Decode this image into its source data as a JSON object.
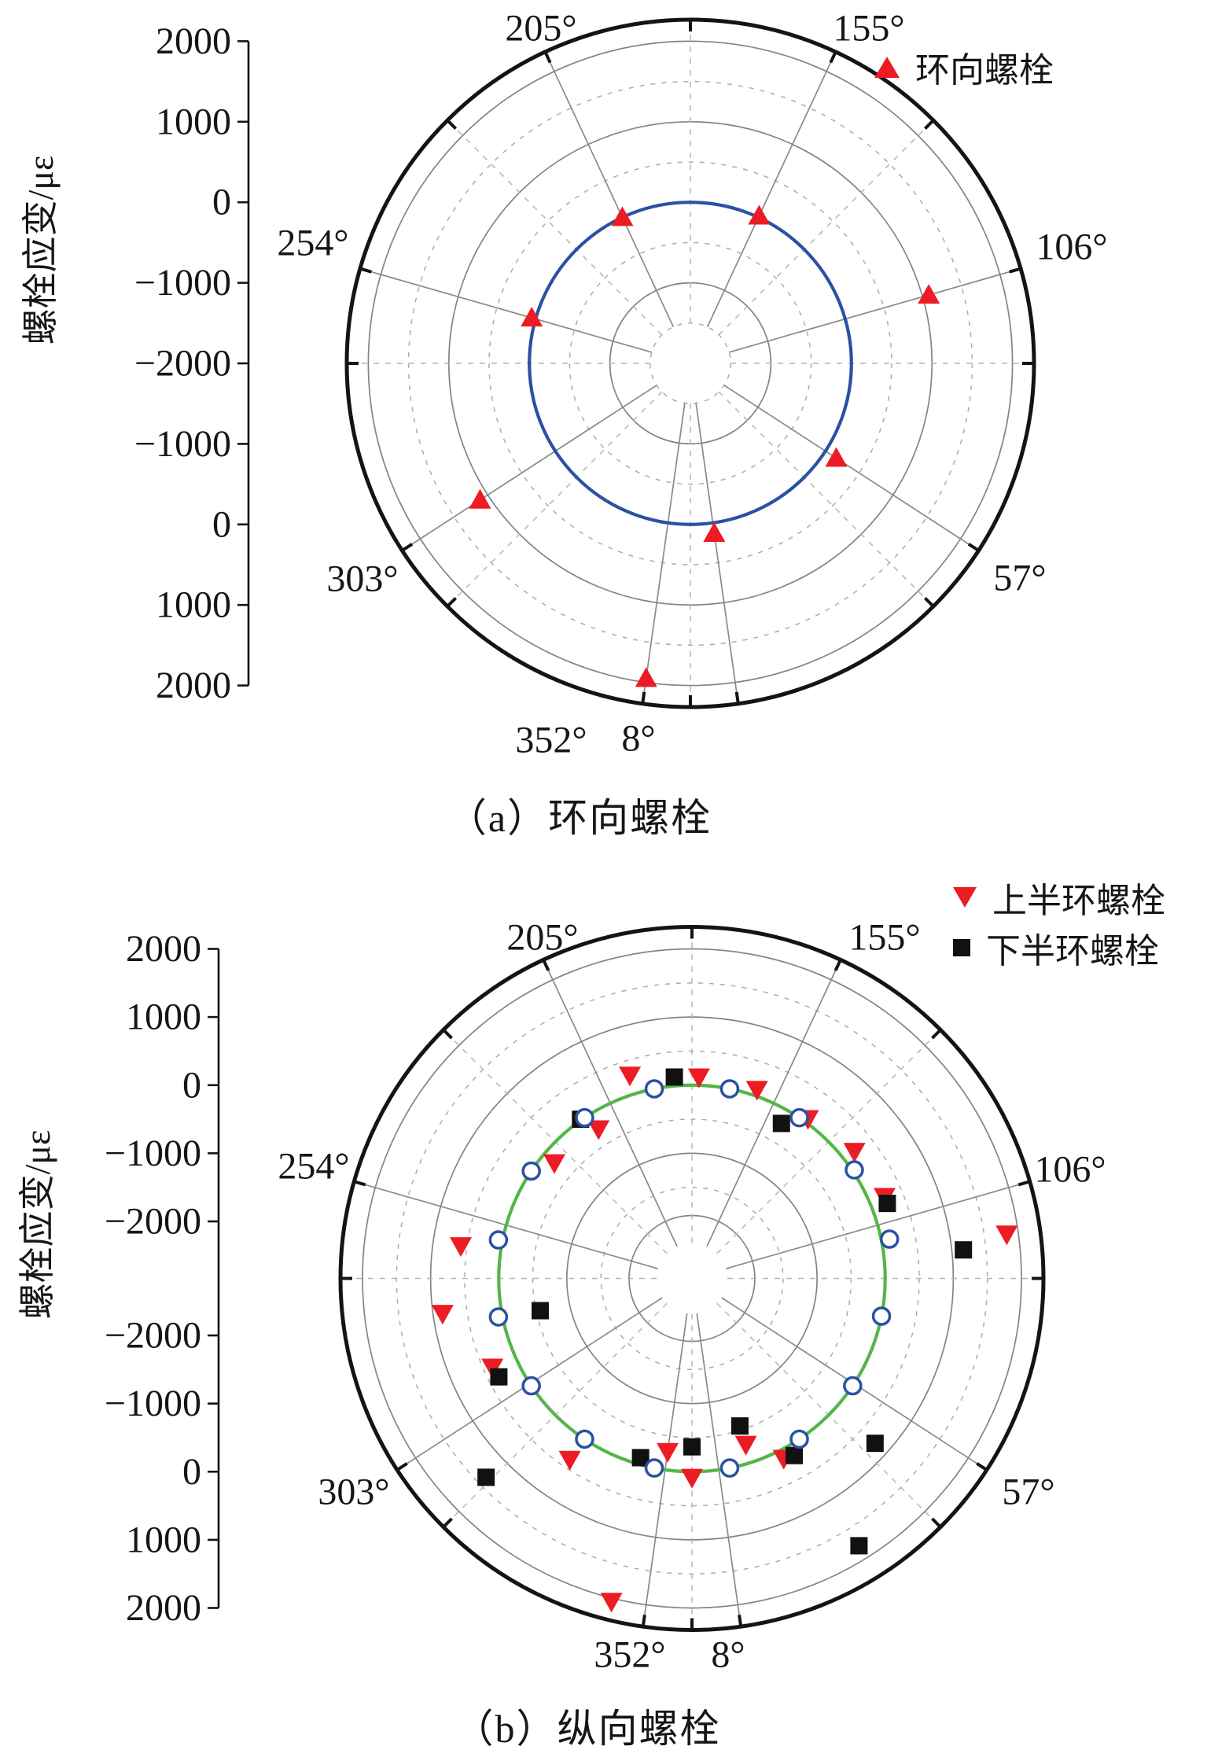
{
  "figure": {
    "background": "#ffffff",
    "description_visible_text_only": true
  },
  "chart_a": {
    "caption": "（a）环向螺栓",
    "axis_title": "螺栓应变/με",
    "legend": {
      "items": [
        {
          "label": "环向螺栓",
          "marker": "triangle-up",
          "color": "#ec1c24"
        }
      ]
    }
  },
  "chart_b": {
    "caption": "（b）纵向螺栓",
    "axis_title": "螺栓应变/με",
    "legend": {
      "items": [
        {
          "label": "上半环螺栓",
          "marker": "triangle-down",
          "color": "#ec1c24"
        },
        {
          "label": "下半环螺栓",
          "marker": "square",
          "color": "#111111"
        }
      ]
    }
  },
  "chart_data": [
    {
      "type": "scatter",
      "subtype": "polar",
      "title": "（a）环向螺栓",
      "radial_label": "螺栓应变/με",
      "radial_range": [
        -2000,
        2000
      ],
      "radial_tick_labels": [
        "2000",
        "1000",
        "0",
        "−1000",
        "−2000",
        "−1000",
        "0",
        "1000",
        "2000"
      ],
      "radial_tick_values": [
        2000,
        1000,
        0,
        -1000,
        -2000,
        -1000,
        0,
        1000,
        2000
      ],
      "angular_tick_labels": [
        "205°",
        "155°",
        "254°",
        "106°",
        "303°",
        "57°",
        "352°",
        "8°"
      ],
      "orientation": "0° points down, angle increases counterclockwise",
      "grid": {
        "solid_circles": [
          -1000,
          1000,
          2000
        ],
        "dashed_circles": [
          -1500,
          -500,
          500,
          1500
        ],
        "dashed_spokes_deg": [
          0,
          45,
          90,
          135,
          180,
          225,
          270,
          315
        ]
      },
      "reference_circle": {
        "value": 0,
        "color": "#2b51a3"
      },
      "series": [
        {
          "name": "环向螺栓",
          "marker": "triangle-up",
          "color": "#ec1c24",
          "points_deg_microstrain": [
            [
              8,
              130
            ],
            [
              57,
              160
            ],
            [
              106,
              1080
            ],
            [
              155,
              20
            ],
            [
              205,
              0
            ],
            [
              254,
              50
            ],
            [
              303,
              1115
            ],
            [
              352,
              1950
            ]
          ]
        }
      ]
    },
    {
      "type": "scatter",
      "subtype": "polar",
      "title": "（b）纵向螺栓",
      "radial_label": "螺栓应变/με",
      "radial_range": [
        -2000,
        2000
      ],
      "center_hole": true,
      "radial_tick_labels": [
        "2000",
        "1000",
        "0",
        "−1000",
        "−2000",
        "−2000",
        "−1000",
        "0",
        "1000",
        "2000"
      ],
      "radial_tick_values": [
        2000,
        1000,
        0,
        -1000,
        -2000,
        -2000,
        -1000,
        0,
        1000,
        2000
      ],
      "angular_tick_labels": [
        "205°",
        "155°",
        "254°",
        "106°",
        "303°",
        "57°",
        "352°",
        "8°"
      ],
      "orientation": "0° points down, angle increases counterclockwise",
      "grid": {
        "solid_circles": [
          -1000,
          1000,
          2000
        ],
        "dashed_circles": [
          -1500,
          -500,
          500,
          1500
        ],
        "dashed_spokes_deg": [
          0,
          45,
          90,
          135,
          180,
          225,
          270,
          315
        ]
      },
      "reference_circle": {
        "value": 0,
        "color": "#54b648"
      },
      "reference_markers": {
        "marker": "open-circle",
        "color": "#2b51a3",
        "points_deg_microstrain": [
          [
            11.25,
            0
          ],
          [
            33.75,
            0
          ],
          [
            56.25,
            0
          ],
          [
            78.75,
            0
          ],
          [
            101.25,
            120
          ],
          [
            123.75,
            30
          ],
          [
            146.25,
            0
          ],
          [
            168.75,
            0
          ],
          [
            191.25,
            0
          ],
          [
            213.75,
            0
          ],
          [
            236.25,
            0
          ],
          [
            258.75,
            60
          ],
          [
            281.25,
            60
          ],
          [
            303.75,
            0
          ],
          [
            326.25,
            0
          ],
          [
            348.75,
            0
          ]
        ]
      },
      "series": [
        {
          "name": "上半环螺栓",
          "marker": "triangle-down",
          "color": "#ec1c24",
          "points_deg_microstrain": [
            [
              0,
              85
            ],
            [
              18,
              -275
            ],
            [
              27,
              130
            ],
            [
              98,
              1830
            ],
            [
              113,
              235
            ],
            [
              128,
              190
            ],
            [
              144,
              60
            ],
            [
              161,
              95
            ],
            [
              178,
              120
            ],
            [
              197,
              280
            ],
            [
              212,
              -250
            ],
            [
              230,
              -200
            ],
            [
              262,
              590
            ],
            [
              278,
              860
            ],
            [
              294,
              370
            ],
            [
              326,
              370
            ],
            [
              346,
              2050
            ],
            [
              352,
              -270
            ]
          ]
        },
        {
          "name": "下半环螺栓",
          "marker": "square",
          "color": "#111111",
          "points_deg_microstrain": [
            [
              0,
              -365
            ],
            [
              18,
              -560
            ],
            [
              30,
              165
            ],
            [
              32,
              1790
            ],
            [
              48,
              780
            ],
            [
              96,
              1170
            ],
            [
              111,
              235
            ],
            [
              150,
              -210
            ],
            [
              185,
              130
            ],
            [
              215,
              15
            ],
            [
              282,
              -560
            ],
            [
              297,
              345
            ],
            [
              314,
              1365
            ],
            [
              344,
              -100
            ]
          ]
        }
      ]
    }
  ]
}
